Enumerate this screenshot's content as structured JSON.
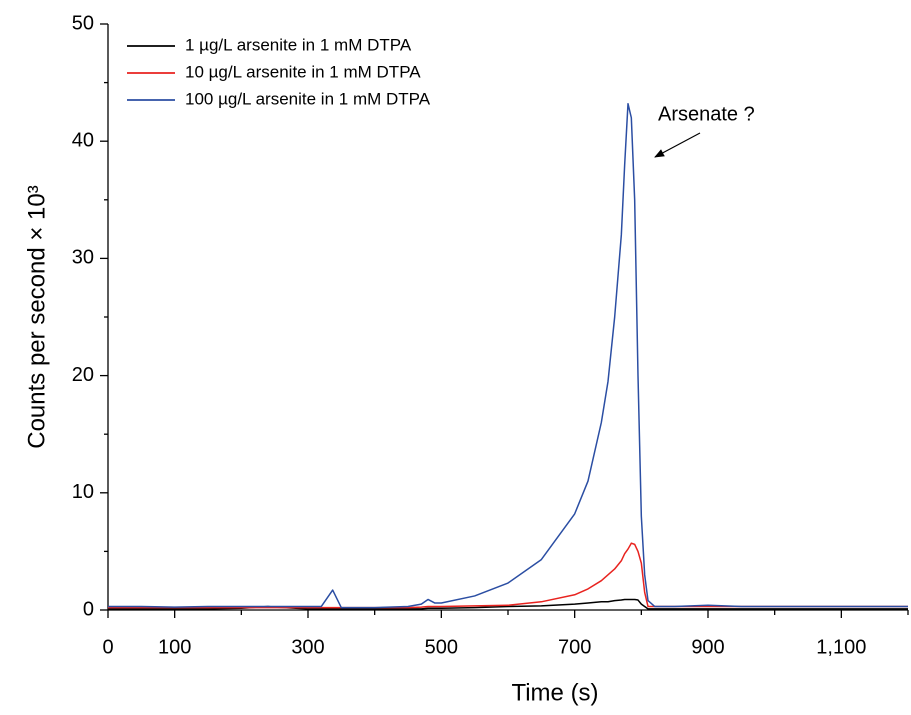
{
  "chart_data": {
    "type": "line",
    "x_label": "Time (s)",
    "y_label": "Counts per second × 10³",
    "annotation": "Arsenate ?",
    "xlim": [
      0,
      1200
    ],
    "xticks": [
      0,
      100,
      300,
      500,
      700,
      900,
      {
        "value": 1100,
        "label": "1,100"
      }
    ],
    "x_minor_ticks": [
      200,
      400,
      600,
      800,
      1000,
      1200
    ],
    "ylim": [
      0,
      50
    ],
    "yticks": [
      0,
      10,
      20,
      30,
      40,
      50
    ],
    "y_minor_ticks": [
      5,
      15,
      25,
      35,
      45
    ],
    "legend": "top-left",
    "x": [
      0,
      50,
      100,
      150,
      200,
      240,
      250,
      300,
      320,
      337,
      350,
      400,
      450,
      470,
      480,
      490,
      500,
      550,
      600,
      650,
      700,
      720,
      740,
      750,
      760,
      770,
      775,
      780,
      785,
      790,
      795,
      800,
      805,
      810,
      820,
      850,
      900,
      950,
      1000,
      1100,
      1200
    ],
    "series": [
      {
        "name": "1 µg/L arsenite in 1 mM DTPA",
        "color": "#000000",
        "values": [
          0.1,
          0.1,
          0.1,
          0.1,
          0.15,
          0.3,
          0.25,
          0.1,
          0.1,
          0.1,
          0.1,
          0.1,
          0.1,
          0.1,
          0.15,
          0.15,
          0.15,
          0.2,
          0.3,
          0.35,
          0.5,
          0.6,
          0.7,
          0.7,
          0.8,
          0.85,
          0.9,
          0.9,
          0.9,
          0.9,
          0.85,
          0.5,
          0.3,
          0.1,
          0.1,
          0.1,
          0.1,
          0.1,
          0.1,
          0.1,
          0.1
        ]
      },
      {
        "name": "10 µg/L arsenite in 1 mM DTPA",
        "color": "#e8231f",
        "values": [
          0.2,
          0.2,
          0.2,
          0.2,
          0.2,
          0.2,
          0.2,
          0.2,
          0.2,
          0.2,
          0.2,
          0.2,
          0.2,
          0.25,
          0.3,
          0.3,
          0.3,
          0.35,
          0.4,
          0.7,
          1.3,
          1.8,
          2.5,
          3,
          3.5,
          4.2,
          4.8,
          5.2,
          5.7,
          5.6,
          5,
          4,
          1.5,
          0.3,
          0.3,
          0.3,
          0.3,
          0.3,
          0.3,
          0.3,
          0.3
        ]
      },
      {
        "name": "100 µg/L arsenite in 1 mM DTPA",
        "color": "#2b4ea3",
        "values": [
          0.3,
          0.3,
          0.25,
          0.3,
          0.3,
          0.3,
          0.3,
          0.3,
          0.3,
          1.7,
          0.2,
          0.2,
          0.3,
          0.5,
          0.9,
          0.6,
          0.6,
          1.2,
          2.3,
          4.3,
          8.2,
          11,
          16,
          19.5,
          25,
          32,
          38,
          43.2,
          42,
          35,
          20,
          8,
          3,
          0.8,
          0.3,
          0.3,
          0.4,
          0.3,
          0.3,
          0.3,
          0.3
        ]
      }
    ]
  }
}
